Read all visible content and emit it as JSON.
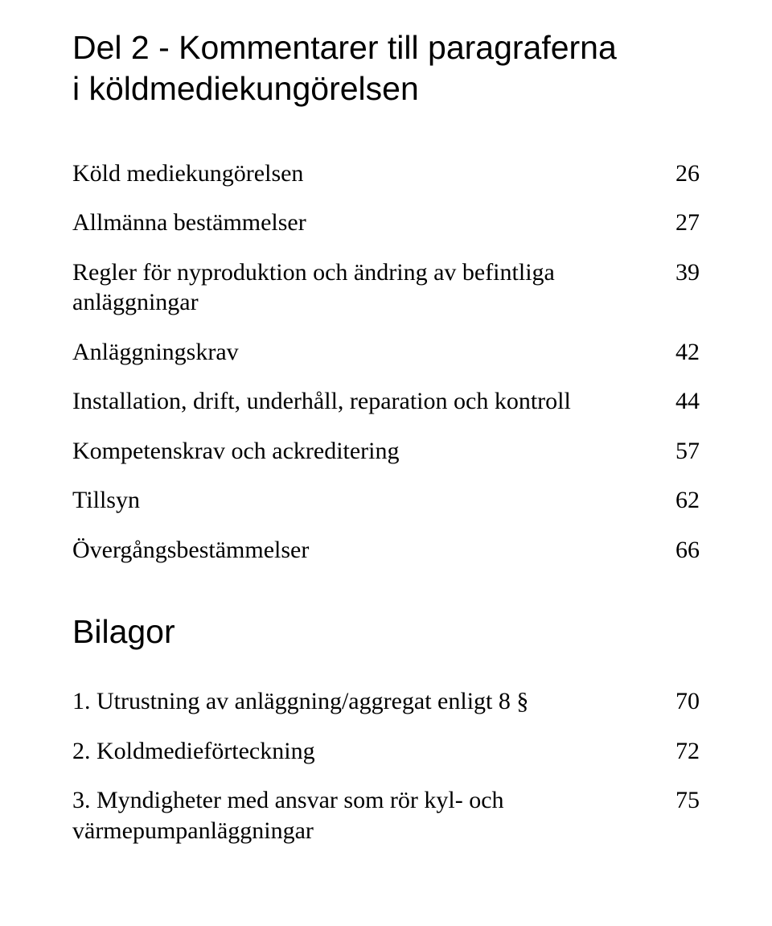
{
  "section_title_line1": "Del 2 - Kommentarer till paragraferna",
  "section_title_line2": "i köldmediekungörelsen",
  "toc": [
    {
      "label": "Köld mediekungörelsen",
      "page": "26"
    },
    {
      "label": "Allmänna bestämmelser",
      "page": "27"
    },
    {
      "label": "Regler för nyproduktion och ändring av befintliga anläggningar",
      "page": "39"
    },
    {
      "label": "Anläggningskrav",
      "page": "42"
    },
    {
      "label": "Installation, drift, underhåll, reparation och kontroll",
      "page": "44"
    },
    {
      "label": "Kompetenskrav och ackreditering",
      "page": "57"
    },
    {
      "label": "Tillsyn",
      "page": "62"
    },
    {
      "label": "Övergångsbestämmelser",
      "page": "66"
    }
  ],
  "bilagor_title": "Bilagor",
  "bilagor": [
    {
      "label": "1. Utrustning av anläggning/aggregat enligt 8 §",
      "page": "70"
    },
    {
      "label": "2. Koldmedieförteckning",
      "page": "72"
    },
    {
      "label": "3. Myndigheter med ansvar som rör kyl- och värmepumpanläggningar",
      "page": "75"
    }
  ]
}
